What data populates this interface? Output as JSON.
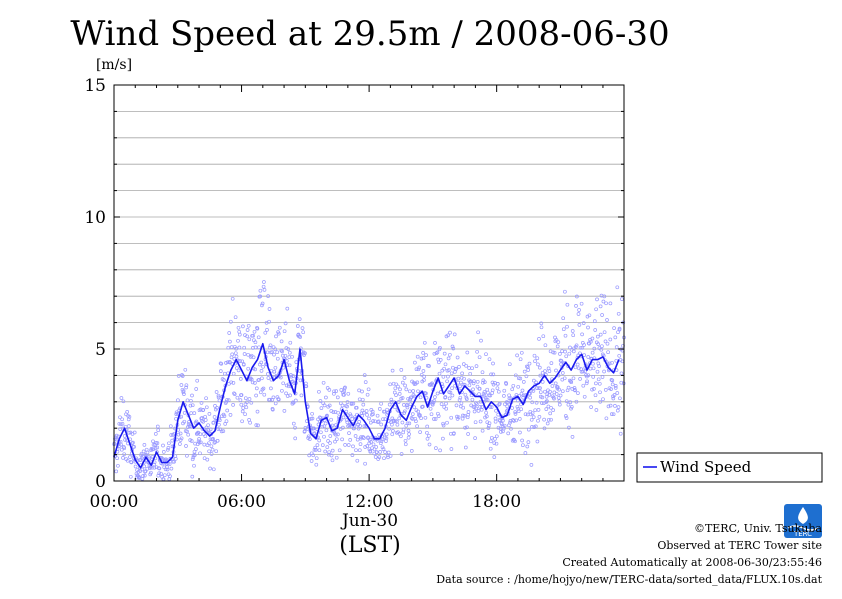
{
  "chart_data": {
    "type": "line",
    "title": "Wind Speed at 29.5m / 2008-06-30",
    "ylabel": "[m/s]",
    "xlabel": "(LST)",
    "date_label": "Jun-30",
    "ylim": [
      0,
      15
    ],
    "xlim": [
      0,
      23.99
    ],
    "y_ticks": [
      0,
      5,
      10,
      15
    ],
    "x_ticks": [
      {
        "hour": 0,
        "label": "00:00"
      },
      {
        "hour": 6,
        "label": "06:00"
      },
      {
        "hour": 12,
        "label": "12:00"
      },
      {
        "hour": 18,
        "label": "18:00"
      }
    ],
    "grid": true,
    "legend_position": "right",
    "series": [
      {
        "name": "Wind Speed",
        "color": "#1a1aee",
        "hours": [
          0.0,
          0.25,
          0.5,
          0.75,
          1.0,
          1.25,
          1.5,
          1.75,
          2.0,
          2.25,
          2.5,
          2.75,
          3.0,
          3.25,
          3.5,
          3.75,
          4.0,
          4.25,
          4.5,
          4.75,
          5.0,
          5.25,
          5.5,
          5.75,
          6.0,
          6.25,
          6.5,
          6.75,
          7.0,
          7.25,
          7.5,
          7.75,
          8.0,
          8.25,
          8.5,
          8.75,
          9.0,
          9.25,
          9.5,
          9.75,
          10.0,
          10.25,
          10.5,
          10.75,
          11.0,
          11.25,
          11.5,
          11.75,
          12.0,
          12.25,
          12.5,
          12.75,
          13.0,
          13.25,
          13.5,
          13.75,
          14.0,
          14.25,
          14.5,
          14.75,
          15.0,
          15.25,
          15.5,
          15.75,
          16.0,
          16.25,
          16.5,
          16.75,
          17.0,
          17.25,
          17.5,
          17.75,
          18.0,
          18.25,
          18.5,
          18.75,
          19.0,
          19.25,
          19.5,
          19.75,
          20.0,
          20.25,
          20.5,
          20.75,
          21.0,
          21.25,
          21.5,
          21.75,
          22.0,
          22.25,
          22.5,
          22.75,
          23.0,
          23.25,
          23.5,
          23.75
        ],
        "values": [
          0.9,
          1.6,
          2.0,
          1.4,
          0.8,
          0.5,
          0.9,
          0.6,
          1.1,
          0.7,
          0.7,
          0.9,
          2.3,
          3.0,
          2.5,
          2.0,
          2.2,
          1.9,
          1.7,
          1.9,
          2.8,
          3.6,
          4.2,
          4.6,
          4.2,
          3.8,
          4.3,
          4.6,
          5.2,
          4.3,
          3.8,
          4.0,
          4.6,
          3.8,
          3.3,
          5.0,
          3.0,
          1.8,
          1.6,
          2.3,
          2.4,
          1.9,
          2.0,
          2.7,
          2.4,
          2.1,
          2.5,
          2.3,
          2.0,
          1.6,
          1.6,
          2.0,
          2.7,
          3.0,
          2.5,
          2.3,
          2.8,
          3.2,
          3.4,
          2.8,
          3.4,
          3.9,
          3.3,
          3.6,
          3.9,
          3.3,
          3.6,
          3.4,
          3.2,
          3.2,
          2.7,
          3.0,
          2.8,
          2.4,
          2.5,
          3.1,
          3.2,
          2.9,
          3.4,
          3.6,
          3.7,
          4.0,
          3.7,
          3.9,
          4.2,
          4.5,
          4.2,
          4.6,
          4.8,
          4.2,
          4.6,
          4.6,
          4.7,
          4.3,
          4.1,
          4.6
        ]
      }
    ]
  },
  "footer": {
    "copyright": "©TERC, Univ. Tsukuba",
    "site": "Observed at TERC Tower site",
    "created": "Created Automatically at 2008-06-30/23:55:46",
    "source": "Data source : /home/hojyo/new/TERC-data/sorted_data/FLUX.10s.dat"
  },
  "logo": {
    "text": "TERC",
    "color": "#1e6fd0"
  }
}
